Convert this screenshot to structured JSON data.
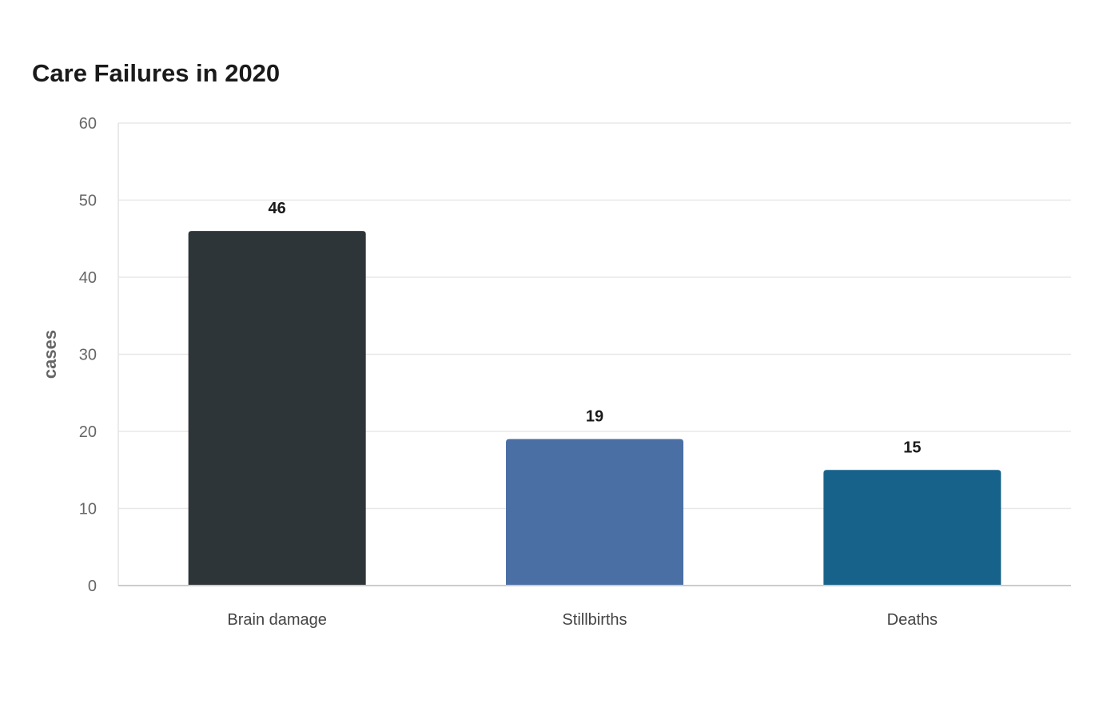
{
  "chart_data": {
    "type": "bar",
    "title": "Care Failures in 2020",
    "xlabel": "",
    "ylabel": "cases",
    "categories": [
      "Brain damage",
      "Stillbirths",
      "Deaths"
    ],
    "values": [
      46,
      19,
      15
    ],
    "data_labels": [
      "46",
      "19",
      "15"
    ],
    "colors": [
      "#2e3538",
      "#4a6fa5",
      "#17628a"
    ],
    "ylim": [
      0,
      60
    ],
    "yticks": [
      0,
      10,
      20,
      30,
      40,
      50,
      60
    ],
    "grid": true,
    "legend": "none"
  }
}
